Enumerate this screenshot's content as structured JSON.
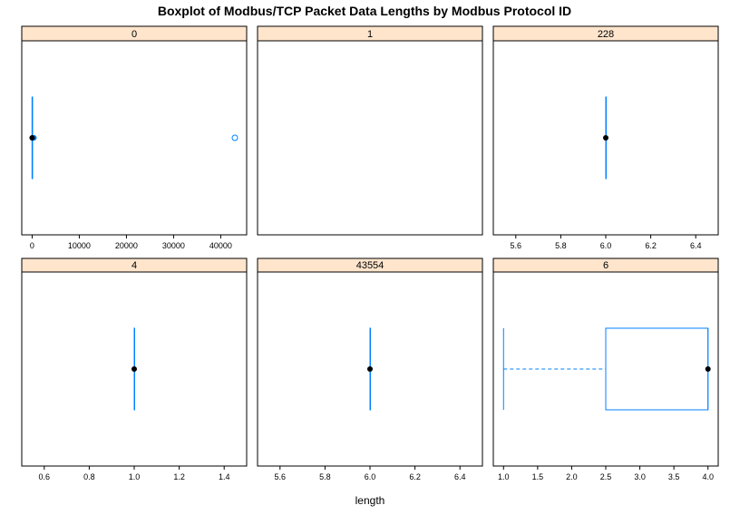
{
  "chart_data": {
    "type": "boxplot",
    "title": "Boxplot of Modbus/TCP Packet Data Lengths by Modbus Protocol ID",
    "xlabel": "length",
    "colors": {
      "strip": "#ffe5cc",
      "box": "#0080ff",
      "median": "#000000"
    },
    "panels": [
      {
        "label": "0",
        "xlim": [
          -2200,
          45500
        ],
        "ticks": [
          0,
          10000,
          20000,
          30000,
          40000
        ],
        "stats": {
          "min": 0,
          "q1": 0,
          "median": 0,
          "q3": 0,
          "max": 0
        },
        "extra_points": [
          100,
          250,
          400
        ],
        "outliers": [
          43000
        ]
      },
      {
        "label": "1",
        "xlim": [
          0,
          1
        ],
        "ticks": [],
        "stats": null,
        "extra_points": [],
        "outliers": []
      },
      {
        "label": "228",
        "xlim": [
          5.5,
          6.5
        ],
        "ticks": [
          5.6,
          5.8,
          6.0,
          6.2,
          6.4
        ],
        "stats": {
          "min": 6,
          "q1": 6,
          "median": 6,
          "q3": 6,
          "max": 6
        },
        "extra_points": [],
        "outliers": []
      },
      {
        "label": "4",
        "xlim": [
          0.5,
          1.5
        ],
        "ticks": [
          0.6,
          0.8,
          1.0,
          1.2,
          1.4
        ],
        "stats": {
          "min": 1,
          "q1": 1,
          "median": 1,
          "q3": 1,
          "max": 1
        },
        "extra_points": [],
        "outliers": []
      },
      {
        "label": "43554",
        "xlim": [
          5.5,
          6.5
        ],
        "ticks": [
          5.6,
          5.8,
          6.0,
          6.2,
          6.4
        ],
        "stats": {
          "min": 6,
          "q1": 6,
          "median": 6,
          "q3": 6,
          "max": 6
        },
        "extra_points": [],
        "outliers": []
      },
      {
        "label": "6",
        "xlim": [
          0.85,
          4.15
        ],
        "ticks": [
          1.0,
          1.5,
          2.0,
          2.5,
          3.0,
          3.5,
          4.0
        ],
        "stats": {
          "min": 1,
          "q1": 2.5,
          "median": 4,
          "q3": 4,
          "max": 4
        },
        "extra_points": [],
        "outliers": []
      }
    ]
  }
}
